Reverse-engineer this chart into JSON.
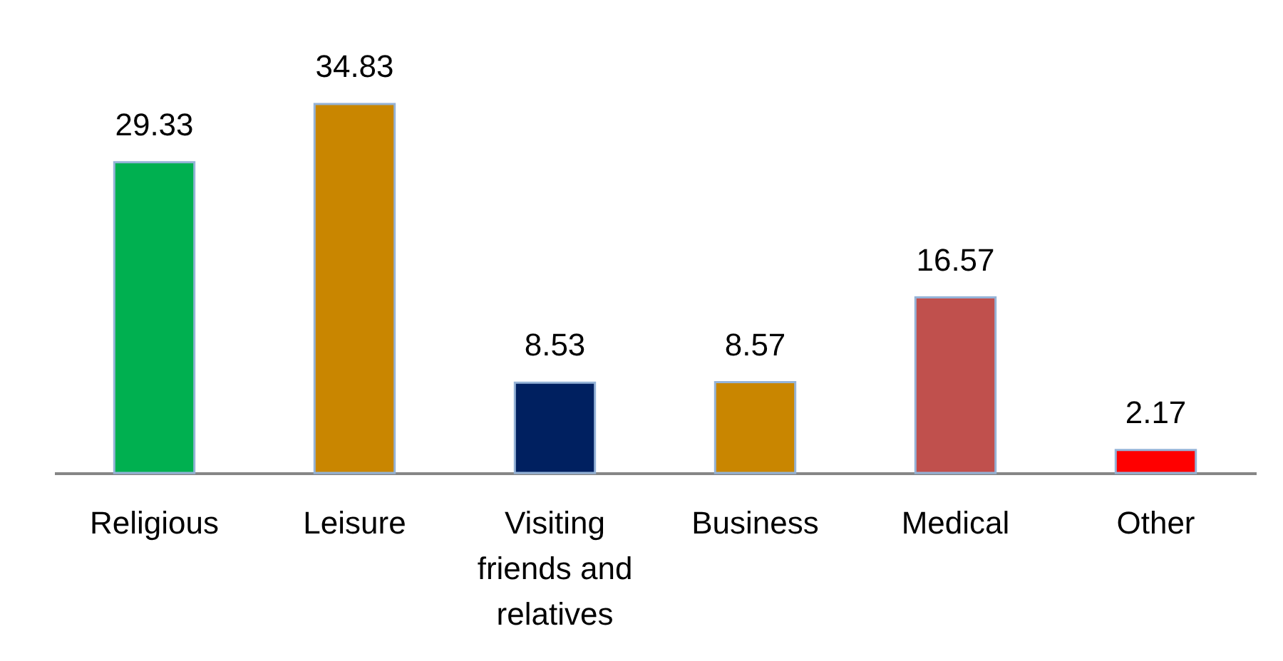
{
  "chart_data": {
    "type": "bar",
    "categories": [
      "Religious",
      "Leisure",
      "Visiting friends and relatives",
      "Business",
      "Medical",
      "Other"
    ],
    "values": [
      29.33,
      34.83,
      8.53,
      8.57,
      16.57,
      2.17
    ],
    "colors": [
      "#00b050",
      "#c98600",
      "#002060",
      "#c98600",
      "#c0504d",
      "#ff0000"
    ],
    "data_labels": true
  }
}
